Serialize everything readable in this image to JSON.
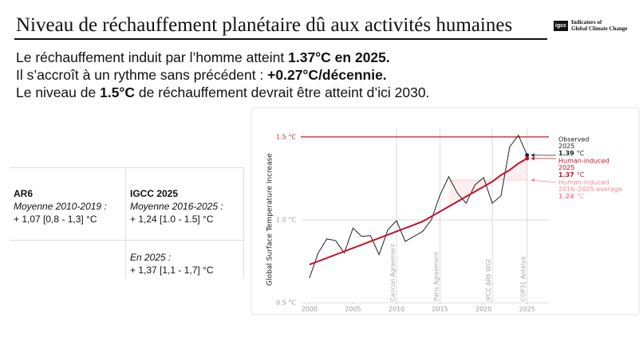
{
  "header": {
    "title": "Niveau de réchauffement planétaire dû aux activités humaines",
    "logo": {
      "mark": "igcc",
      "lines": [
        "Indicators of",
        "Global Climate Change"
      ]
    }
  },
  "intro": {
    "lines": [
      [
        "Le réchauffement induit par l’homme atteint ",
        "1.37°C en 2025."
      ],
      [
        "Il s’accroît à un rythme sans précédent : ",
        "+0.27°C/décennie."
      ],
      [
        "Le niveau de ",
        "1.5°C",
        " de réchauffement devrait être atteint d’ici 2030."
      ]
    ]
  },
  "table": {
    "columns": [
      {
        "heading": "AR6",
        "subtitle": "Moyenne 2010-2019 :",
        "value": "+ 1,07 [0,8 - 1,3] °C"
      },
      {
        "heading": "IGCC 2025",
        "subtitle": "Moyenne 2016-2025 :",
        "value": "+ 1,24 [1.0 - 1.5] °C",
        "extra": {
          "subtitle": "En 2025 :",
          "value": "+ 1,37 [1,1 - 1,7] °C"
        }
      }
    ]
  },
  "chart_data": {
    "type": "line",
    "y_label": "Global Surface Temperature Increase",
    "unit": "°C",
    "x": [
      2000,
      2001,
      2002,
      2003,
      2004,
      2005,
      2006,
      2007,
      2008,
      2009,
      2010,
      2011,
      2012,
      2013,
      2014,
      2015,
      2016,
      2017,
      2018,
      2019,
      2020,
      2021,
      2022,
      2023,
      2024,
      2025
    ],
    "series": [
      {
        "name": "Observed",
        "color": "#222222",
        "values": [
          0.65,
          0.8,
          0.885,
          0.875,
          0.8,
          0.95,
          0.9,
          0.905,
          0.79,
          0.94,
          0.995,
          0.87,
          0.9,
          0.93,
          1.0,
          1.15,
          1.26,
          1.16,
          1.1,
          1.21,
          1.255,
          1.1,
          1.145,
          1.44,
          1.51,
          1.39
        ]
      },
      {
        "name": "Human-induced",
        "color": "#c8102e",
        "values": [
          0.73,
          0.75,
          0.77,
          0.79,
          0.81,
          0.83,
          0.85,
          0.87,
          0.89,
          0.91,
          0.93,
          0.95,
          0.97,
          0.99,
          1.02,
          1.05,
          1.08,
          1.11,
          1.14,
          1.17,
          1.2,
          1.23,
          1.27,
          1.3,
          1.34,
          1.37
        ]
      }
    ],
    "average": {
      "name": "Human-induced",
      "period": "2016–2025 average",
      "value": 1.24,
      "from": 2016,
      "to": 2025,
      "color": "#f08a96"
    },
    "reference_line": {
      "value": 1.5,
      "color": "#d62839"
    },
    "events": [
      {
        "label": "Cancún Agreement",
        "x": 2010
      },
      {
        "label": "Paris Agreement",
        "x": 2015
      },
      {
        "label": "IPCC AR6 WGI",
        "x": 2021
      },
      {
        "label": "COP31 Antalya",
        "x": 2025
      }
    ],
    "xlim": [
      1999,
      2027.5
    ],
    "ylim": [
      0.5,
      1.6
    ],
    "xticks": [
      2000,
      2005,
      2010,
      2015,
      2020,
      2025
    ],
    "yticks": [
      {
        "value": 0.5,
        "label": "0.5 °C"
      },
      {
        "value": 1.0,
        "label": "1.0 °C"
      },
      {
        "value": 1.5,
        "label": "1.5 °C"
      }
    ],
    "grid": true
  }
}
